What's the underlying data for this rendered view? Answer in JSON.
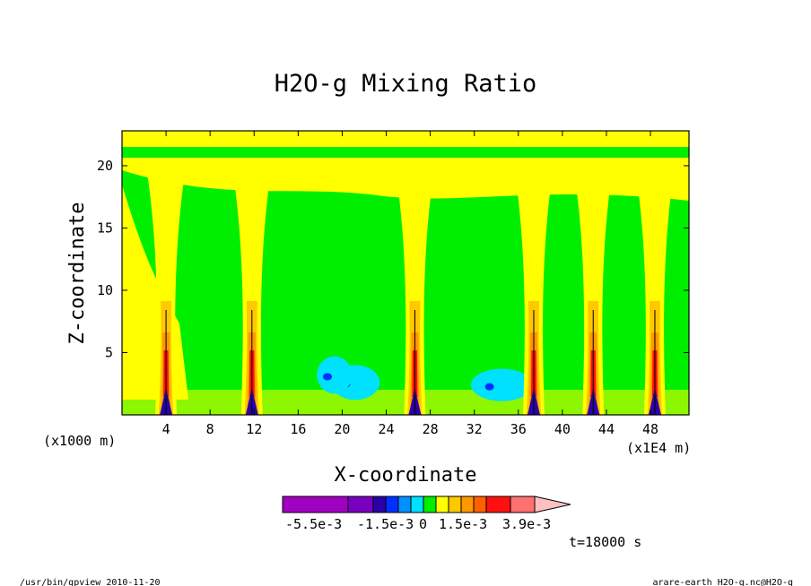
{
  "chart_data": {
    "type": "heatmap",
    "title": "H2O-g Mixing Ratio",
    "xlabel": "X-coordinate",
    "ylabel": "Z-coordinate",
    "x_unit_left": "(x1000 m)",
    "x_unit_right": "(x1E4 m)",
    "xlim": [
      0,
      51.5
    ],
    "ylim": [
      0,
      22.8
    ],
    "x_ticks": [
      "4",
      "8",
      "12",
      "16",
      "20",
      "24",
      "28",
      "32",
      "36",
      "40",
      "44",
      "48"
    ],
    "x_tick_values": [
      4,
      8,
      12,
      16,
      20,
      24,
      28,
      32,
      36,
      40,
      44,
      48
    ],
    "y_ticks": [
      "5",
      "10",
      "15",
      "20"
    ],
    "y_tick_values": [
      5,
      10,
      15,
      20
    ],
    "colorbar": {
      "colors": [
        "#a000c0",
        "#7a00c0",
        "#2a00a8",
        "#0030ff",
        "#0090ff",
        "#00e0ff",
        "#00ee00",
        "#ffff00",
        "#ffc800",
        "#ff9800",
        "#ff6000",
        "#ff1010",
        "#ff7070",
        "#ffc0c0"
      ],
      "labels": [
        "-5.5e-3",
        "-1.5e-3",
        "0",
        "1.5e-3",
        "3.9e-3"
      ]
    },
    "palette": {
      "deep_neg": "#2a00a8",
      "neg_blue": "#0030ff",
      "neg_cyan": "#00e0ff",
      "zero": "#00ee00",
      "pos_low": "#ffff00",
      "pos_mid": "#ffc800",
      "pos_orange": "#ff9800",
      "pos_deep": "#ff6000",
      "pos_max": "#ff1010"
    },
    "convective_columns_x": [
      4.0,
      11.8,
      26.6,
      37.4,
      42.8,
      48.4
    ],
    "dry_pockets": [
      {
        "x": 21.2,
        "z": 2.6,
        "rx": 2.2,
        "rz": 1.4
      },
      {
        "x": 34.5,
        "z": 2.4,
        "rx": 2.8,
        "rz": 1.3
      },
      {
        "x": 19.3,
        "z": 3.2,
        "rx": 1.6,
        "rz": 1.5
      }
    ],
    "time_label": "t=18000 s"
  },
  "footer": {
    "left": "/usr/bin/gpview   2010-11-20",
    "right": "arare-earth_H2O-g.nc@H2O-g"
  }
}
